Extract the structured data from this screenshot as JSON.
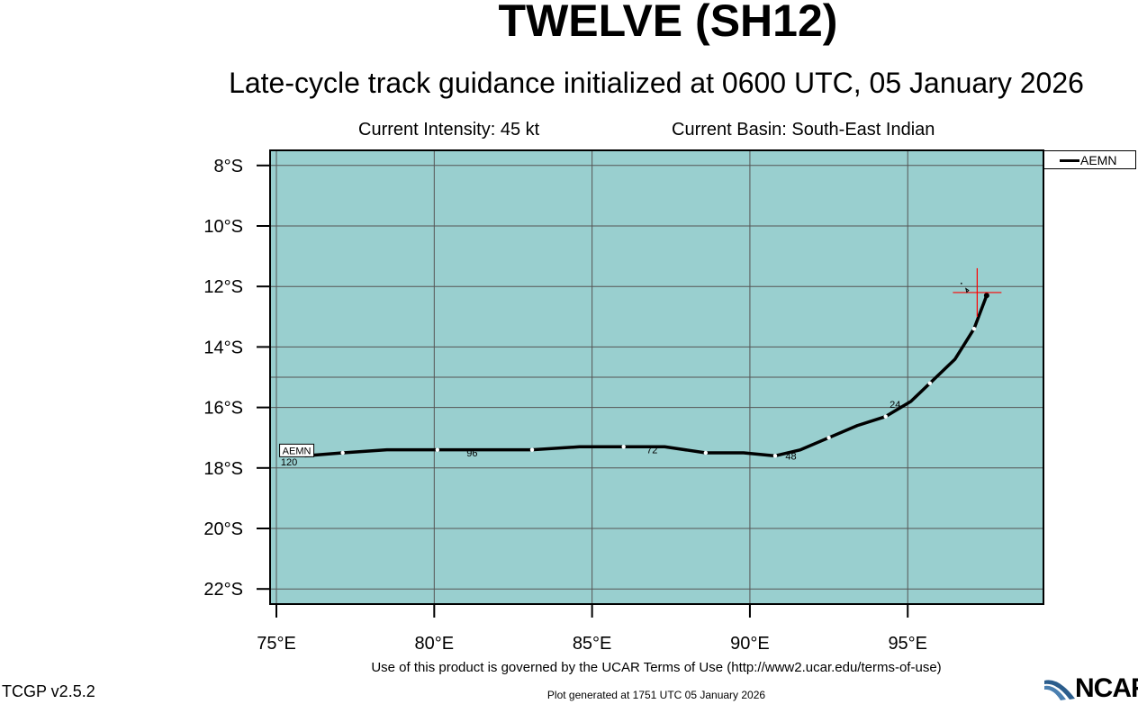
{
  "header": {
    "title": "TWELVE (SH12)",
    "subtitle": "Late-cycle track guidance initialized at 0600 UTC, 05 January 2026",
    "intensity": "Current Intensity: 45 kt",
    "basin": "Current Basin: South-East Indian"
  },
  "legend": {
    "label": "AEMN"
  },
  "footer": {
    "terms": "Use of this product is governed by the UCAR Terms of Use (http://www2.ucar.edu/terms-of-use)",
    "version": "TCGP v2.5.2",
    "generated": "Plot generated at 1751 UTC   05 January 2026",
    "logo": "NCAR"
  },
  "colors": {
    "ocean": "#99cfcf",
    "track": "#000000",
    "grid": "#555555",
    "current_position": "#ff0000"
  },
  "chart_data": {
    "type": "line",
    "xlim": [
      74.8,
      99.3
    ],
    "ylim": [
      -22.5,
      -7.5
    ],
    "x_ticks": [
      75,
      80,
      85,
      90,
      95
    ],
    "x_tick_labels": [
      "75°E",
      "80°E",
      "85°E",
      "90°E",
      "95°E"
    ],
    "y_ticks": [
      -8,
      -10,
      -12,
      -14,
      -16,
      -18,
      -20,
      -22
    ],
    "y_tick_labels": [
      "8°S",
      "10°S",
      "12°S",
      "14°S",
      "16°S",
      "18°S",
      "20°S",
      "22°S"
    ],
    "grid": true,
    "legend_position": "top-right",
    "current_position": {
      "lon": 97.2,
      "lat": -12.2
    },
    "series": [
      {
        "name": "AEMN",
        "lon": [
          97.5,
          97.1,
          96.5,
          95.7,
          95.1,
          94.3,
          93.4,
          92.5,
          91.6,
          90.8,
          89.8,
          88.6,
          87.3,
          86.0,
          84.6,
          83.1,
          81.6,
          80.1,
          78.5,
          77.1,
          75.9
        ],
        "lat": [
          -12.3,
          -13.4,
          -14.4,
          -15.2,
          -15.8,
          -16.3,
          -16.6,
          -17.0,
          -17.4,
          -17.6,
          -17.5,
          -17.5,
          -17.3,
          -17.3,
          -17.3,
          -17.4,
          -17.4,
          -17.4,
          -17.4,
          -17.5,
          -17.6
        ],
        "label_points": [
          {
            "label": "24",
            "lon": 94.6,
            "lat": -15.9
          },
          {
            "label": "48",
            "lon": 91.3,
            "lat": -17.6
          },
          {
            "label": "72",
            "lon": 86.9,
            "lat": -17.4
          },
          {
            "label": "96",
            "lon": 81.2,
            "lat": -17.5
          },
          {
            "label": "120",
            "lon": 75.4,
            "lat": -17.8
          }
        ],
        "end_label": "AEMN"
      }
    ]
  }
}
